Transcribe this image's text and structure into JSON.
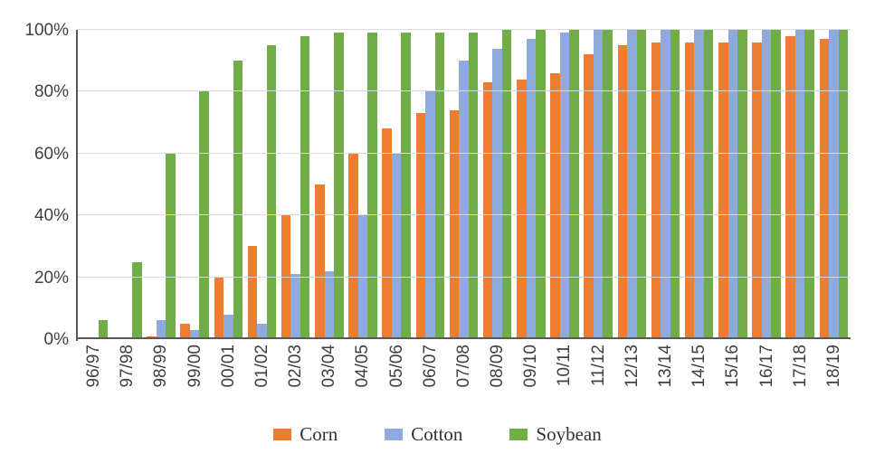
{
  "chart_data": {
    "type": "bar",
    "title": "",
    "xlabel": "",
    "ylabel": "",
    "ylim": [
      0,
      100
    ],
    "grid": true,
    "legend_position": "bottom",
    "categories": [
      "96/97",
      "97/98",
      "98/99",
      "99/00",
      "00/01",
      "01/02",
      "02/03",
      "03/04",
      "04/05",
      "05/06",
      "06/07",
      "07/08",
      "08/09",
      "09/10",
      "10/11",
      "11/12",
      "12/13",
      "13/14",
      "14/15",
      "15/16",
      "16/17",
      "17/18",
      "18/19"
    ],
    "yticks": [
      {
        "value": 0,
        "label": "0%"
      },
      {
        "value": 20,
        "label": "20%"
      },
      {
        "value": 40,
        "label": "40%"
      },
      {
        "value": 60,
        "label": "60%"
      },
      {
        "value": 80,
        "label": "80%"
      },
      {
        "value": 100,
        "label": "100%"
      }
    ],
    "series": [
      {
        "name": "Corn",
        "color": "#ED7D31",
        "values": [
          0,
          0,
          1,
          5,
          20,
          30,
          40,
          50,
          60,
          68,
          73,
          74,
          83,
          84,
          86,
          92,
          95,
          96,
          96,
          96,
          96,
          98,
          97
        ]
      },
      {
        "name": "Cotton",
        "color": "#8FAADC",
        "values": [
          0,
          0,
          6,
          3,
          8,
          5,
          21,
          22,
          40,
          60,
          80,
          90,
          94,
          97,
          99,
          100,
          100,
          100,
          100,
          100,
          100,
          100,
          100
        ]
      },
      {
        "name": "Soybean",
        "color": "#70AD47",
        "values": [
          6,
          25,
          60,
          80,
          90,
          95,
          98,
          99,
          99,
          99,
          99,
          99,
          100,
          100,
          100,
          100,
          100,
          100,
          100,
          100,
          100,
          100,
          100
        ]
      }
    ],
    "axis_colors": {
      "gridline": "#d9d9d9",
      "axis_line": "#595959",
      "tick_text": "#404040"
    }
  }
}
